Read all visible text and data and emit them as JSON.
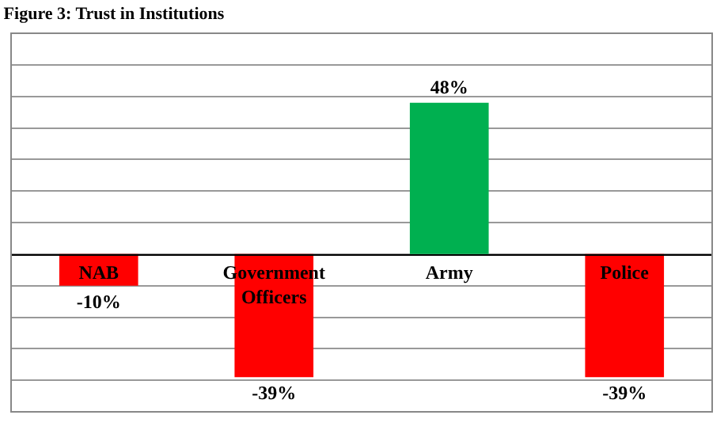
{
  "chart_data": {
    "type": "bar",
    "title": "Figure 3: Trust in Institutions",
    "categories": [
      "NAB",
      "Government Officers",
      "Army",
      "Police"
    ],
    "values": [
      -10,
      -39,
      48,
      -39
    ],
    "colors": [
      "#ff0000",
      "#ff0000",
      "#00b050",
      "#ff0000"
    ],
    "value_labels": [
      "-10%",
      "-39%",
      "48%",
      "-39%"
    ],
    "ylim": [
      -50,
      70
    ],
    "yticks": [
      {
        "value": -50,
        "label": null
      },
      {
        "value": -40,
        "label": null
      },
      {
        "value": -30,
        "label": null
      },
      {
        "value": -20,
        "label": null
      },
      {
        "value": -10,
        "label": null
      },
      {
        "value": 0,
        "label": null
      },
      {
        "value": 10,
        "label": null
      },
      {
        "value": 20,
        "label": null
      },
      {
        "value": 30,
        "label": null
      },
      {
        "value": 40,
        "label": null
      },
      {
        "value": 50,
        "label": null
      },
      {
        "value": 60,
        "label": null
      },
      {
        "value": 70,
        "label": null
      }
    ],
    "grid": "y",
    "tick_labels": "x",
    "legend": false
  }
}
